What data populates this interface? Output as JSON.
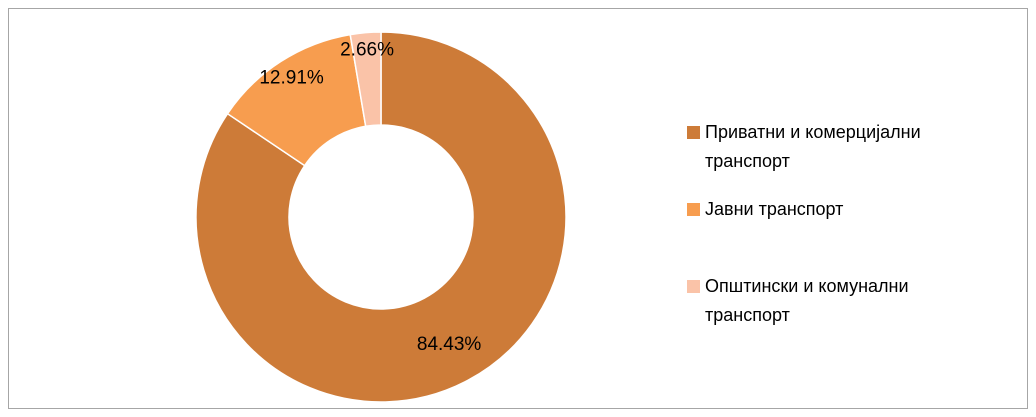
{
  "chart_data": {
    "type": "donut",
    "categories": [
      "Приватни и комерцијални транспорт",
      "Јавни транспорт",
      "Општински и комунални транспорт"
    ],
    "values": [
      84.43,
      12.91,
      2.66
    ],
    "value_labels": [
      "84.43%",
      "12.91%",
      "2.66%"
    ],
    "colors": [
      "#cd7b38",
      "#f79d4f",
      "#fac3a8"
    ],
    "legend": "right"
  }
}
